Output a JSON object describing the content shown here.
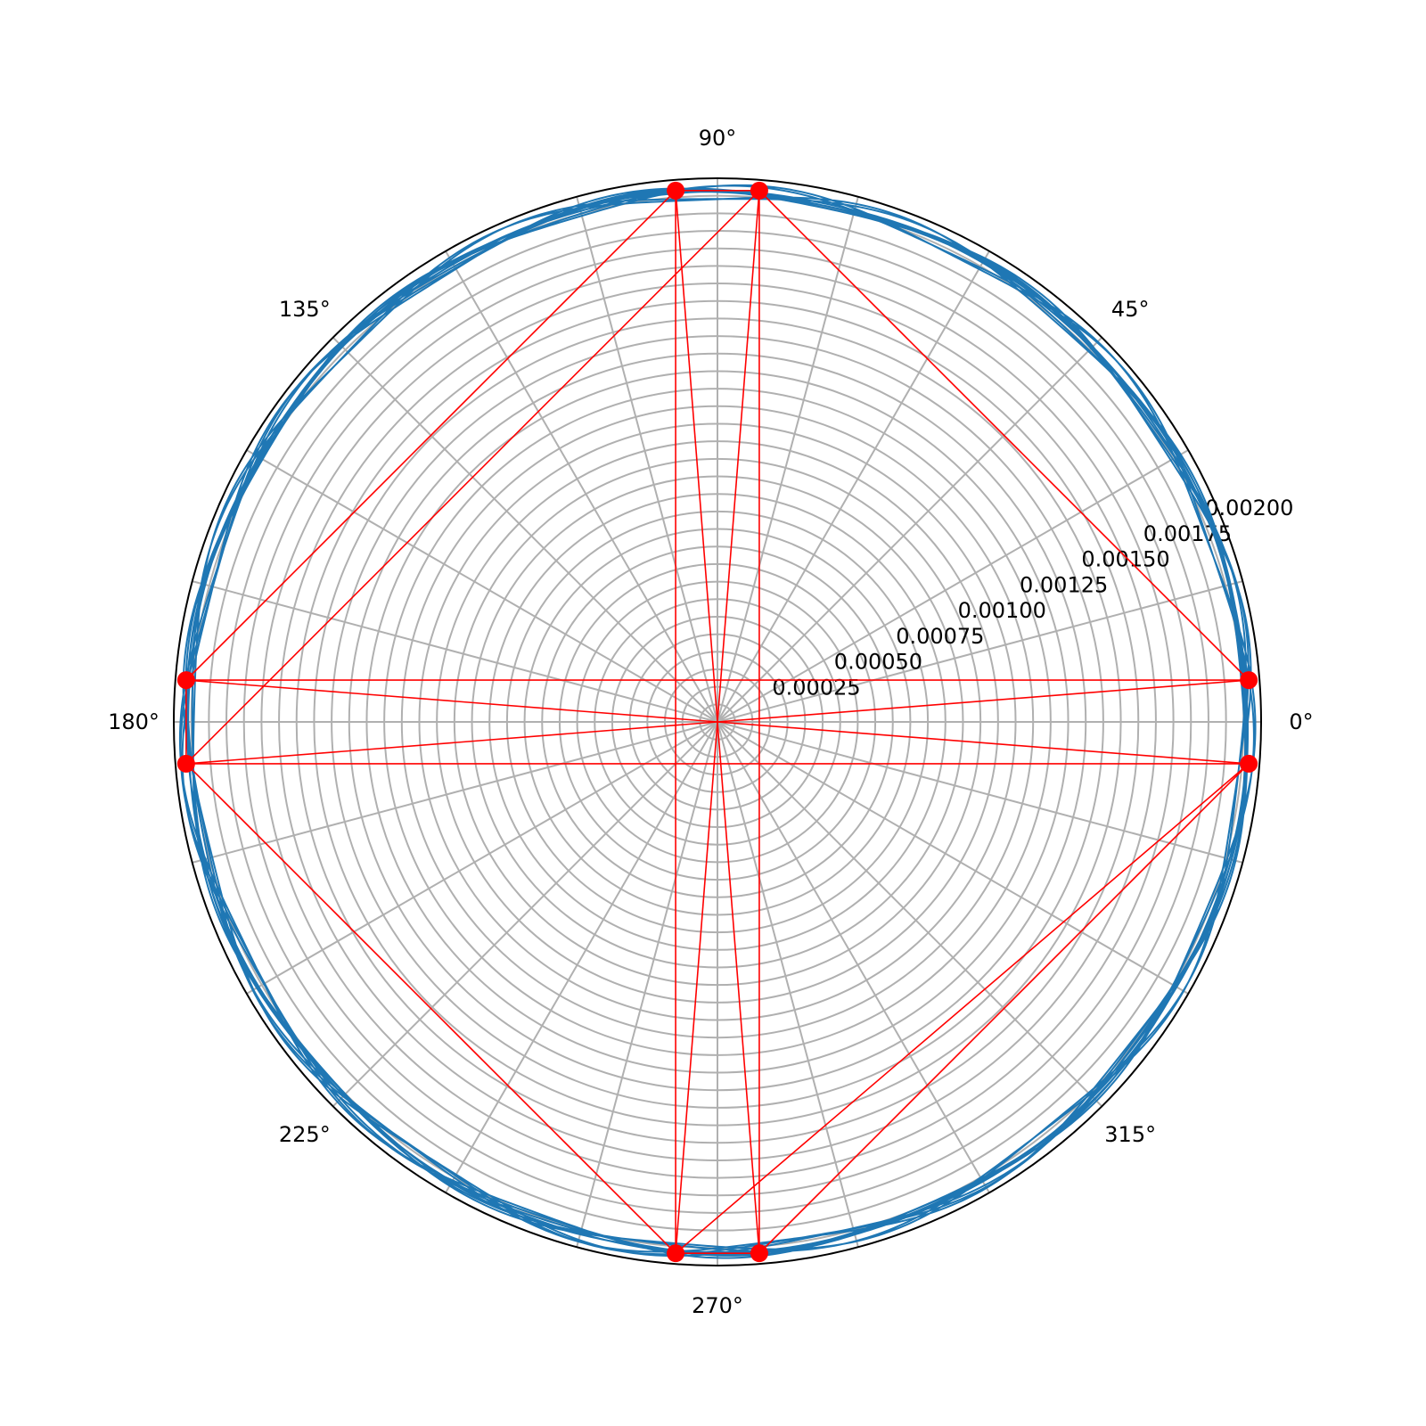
{
  "chart_data": {
    "type": "polar-line",
    "title": "",
    "theta_unit": "degrees",
    "theta_ticks": [
      0,
      45,
      90,
      135,
      180,
      225,
      270,
      315
    ],
    "theta_tick_labels": [
      "0°",
      "45°",
      "90°",
      "135°",
      "180°",
      "225°",
      "270°",
      "315°"
    ],
    "r_max": 0.00203,
    "r_ticks": [
      0.00025,
      0.0005,
      0.00075,
      0.001,
      0.00125,
      0.0015,
      0.00175,
      0.002
    ],
    "r_tick_labels": [
      "0.00025",
      "0.00050",
      "0.00075",
      "0.00100",
      "0.00125",
      "0.00150",
      "0.00175",
      "0.00200"
    ],
    "r_minor_grid_count": 30,
    "theta_grid_step_deg": 15,
    "r_label_angle_deg": 22.5,
    "grid": true,
    "series": [
      {
        "kind": "curve",
        "color": "#1f77b4",
        "description_points": "closed oscillating curve near r max",
        "base_r": 0.00198,
        "amplitude_r": 3e-05,
        "lobes": 8,
        "turns": 10
      },
      {
        "kind": "markers",
        "color": "#ff0000",
        "points": [
          {
            "theta": 4.5,
            "r": 0.00199
          },
          {
            "theta": 85.5,
            "r": 0.00199
          },
          {
            "theta": 94.5,
            "r": 0.00199
          },
          {
            "theta": 175.5,
            "r": 0.00199
          },
          {
            "theta": 184.5,
            "r": 0.00199
          },
          {
            "theta": 265.5,
            "r": 0.00199
          },
          {
            "theta": 274.5,
            "r": 0.00199
          },
          {
            "theta": 355.5,
            "r": 0.00199
          }
        ],
        "connections": [
          [
            0,
            1
          ],
          [
            0,
            3
          ],
          [
            0,
            4
          ],
          [
            1,
            2
          ],
          [
            1,
            4
          ],
          [
            1,
            5
          ],
          [
            1,
            6
          ],
          [
            2,
            3
          ],
          [
            2,
            5
          ],
          [
            2,
            6
          ],
          [
            3,
            4
          ],
          [
            3,
            7
          ],
          [
            4,
            5
          ],
          [
            4,
            7
          ],
          [
            5,
            6
          ],
          [
            5,
            7
          ],
          [
            6,
            7
          ]
        ]
      }
    ]
  }
}
